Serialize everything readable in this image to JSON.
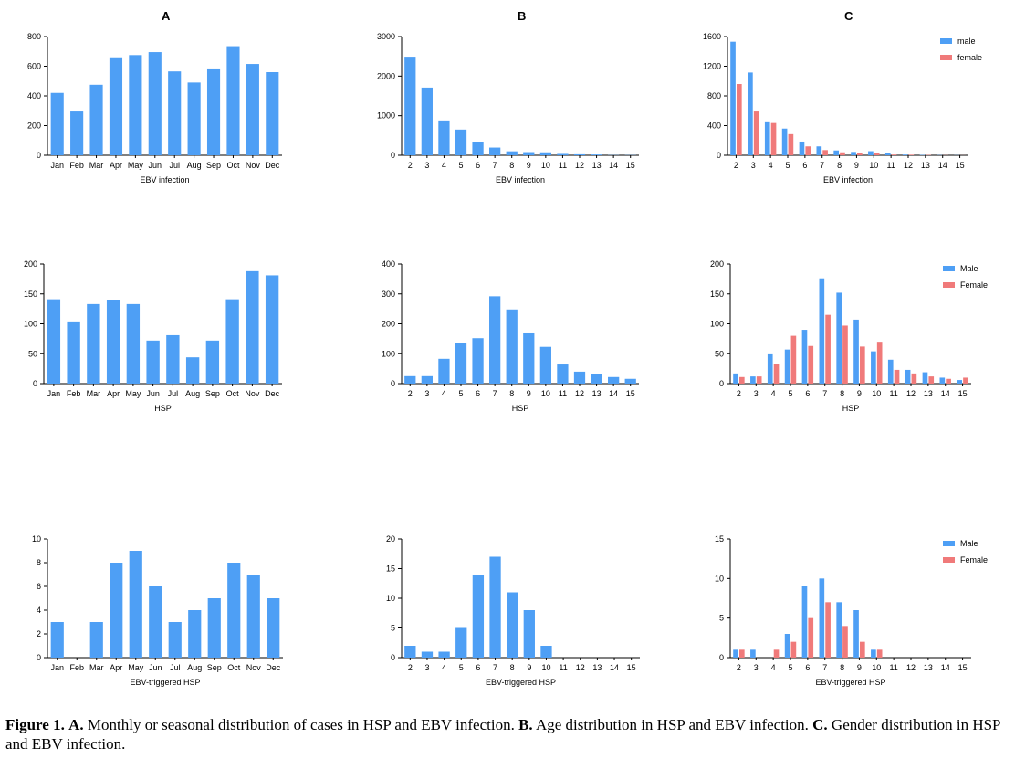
{
  "column_titles": [
    "A",
    "B",
    "C"
  ],
  "caption": {
    "fig_label": "Figure 1.",
    "a_label": "A.",
    "a_text": "Monthly or seasonal distribution of cases in HSP and EBV infection.",
    "b_label": "B.",
    "b_text": "Age distribution in HSP and EBV infection.",
    "c_label": "C.",
    "c_text": "Gender distribution in HSP and EBV infection."
  },
  "colors": {
    "blue": "#4e9ff5",
    "red": "#f07a7a"
  },
  "chart_data": [
    {
      "id": "A1",
      "type": "bar",
      "categories": [
        "Jan",
        "Feb",
        "Mar",
        "Apr",
        "May",
        "Jun",
        "Jul",
        "Aug",
        "Sep",
        "Oct",
        "Nov",
        "Dec"
      ],
      "series": [
        {
          "values": [
            420,
            295,
            475,
            660,
            675,
            695,
            565,
            490,
            585,
            735,
            615,
            560
          ]
        }
      ],
      "xlabel": "EBV infection",
      "ylabel": "",
      "ylim": [
        0,
        800
      ],
      "yticks": [
        0,
        200,
        400,
        600,
        800
      ],
      "legend": null
    },
    {
      "id": "B1",
      "type": "bar",
      "categories": [
        "2",
        "3",
        "4",
        "5",
        "6",
        "7",
        "8",
        "9",
        "10",
        "11",
        "12",
        "13",
        "14",
        "15"
      ],
      "series": [
        {
          "values": [
            2490,
            1710,
            880,
            650,
            330,
            195,
            100,
            80,
            75,
            35,
            25,
            20,
            5,
            5
          ]
        }
      ],
      "xlabel": "EBV infection",
      "ylabel": "",
      "ylim": [
        0,
        3000
      ],
      "yticks": [
        0,
        1000,
        2000,
        3000
      ],
      "legend": null
    },
    {
      "id": "C1",
      "type": "bar",
      "categories": [
        "2",
        "3",
        "4",
        "5",
        "6",
        "7",
        "8",
        "9",
        "10",
        "11",
        "12",
        "13",
        "14",
        "15"
      ],
      "series": [
        {
          "name": "male",
          "values": [
            1530,
            1115,
            445,
            360,
            185,
            120,
            65,
            45,
            55,
            25,
            10,
            5,
            3,
            2
          ]
        },
        {
          "name": "female",
          "values": [
            960,
            590,
            435,
            285,
            120,
            70,
            40,
            30,
            25,
            10,
            8,
            5,
            2,
            1
          ]
        }
      ],
      "xlabel": "EBV infection",
      "ylabel": "",
      "ylim": [
        0,
        1600
      ],
      "yticks": [
        0,
        400,
        800,
        1200,
        1600
      ],
      "legend": "top-right"
    },
    {
      "id": "A2",
      "type": "bar",
      "categories": [
        "Jan",
        "Feb",
        "Mar",
        "Apr",
        "May",
        "Jun",
        "Jul",
        "Aug",
        "Sep",
        "Oct",
        "Nov",
        "Dec"
      ],
      "series": [
        {
          "values": [
            141,
            104,
            133,
            139,
            133,
            72,
            81,
            44,
            72,
            141,
            188,
            181
          ]
        }
      ],
      "xlabel": "HSP",
      "ylabel": "",
      "ylim": [
        0,
        200
      ],
      "yticks": [
        0,
        50,
        100,
        150,
        200
      ],
      "legend": null
    },
    {
      "id": "B2",
      "type": "bar",
      "categories": [
        "2",
        "3",
        "4",
        "5",
        "6",
        "7",
        "8",
        "9",
        "10",
        "11",
        "12",
        "13",
        "14",
        "15"
      ],
      "series": [
        {
          "values": [
            25,
            25,
            83,
            135,
            152,
            292,
            248,
            168,
            123,
            64,
            40,
            32,
            22,
            16
          ]
        }
      ],
      "xlabel": "HSP",
      "ylabel": "",
      "ylim": [
        0,
        400
      ],
      "yticks": [
        0,
        100,
        200,
        300,
        400
      ],
      "legend": null
    },
    {
      "id": "C2",
      "type": "bar",
      "categories": [
        "2",
        "3",
        "4",
        "5",
        "6",
        "7",
        "8",
        "9",
        "10",
        "11",
        "12",
        "13",
        "14",
        "15"
      ],
      "series": [
        {
          "name": "Male",
          "values": [
            17,
            12,
            49,
            57,
            90,
            176,
            152,
            107,
            54,
            40,
            23,
            19,
            10,
            6
          ]
        },
        {
          "name": "Female",
          "values": [
            11,
            12,
            33,
            80,
            63,
            115,
            97,
            62,
            70,
            23,
            17,
            12,
            8,
            10
          ]
        }
      ],
      "xlabel": "HSP",
      "ylabel": "",
      "ylim": [
        0,
        200
      ],
      "yticks": [
        0,
        50,
        100,
        150,
        200
      ],
      "legend": "top-right"
    },
    {
      "id": "A3",
      "type": "bar",
      "categories": [
        "Jan",
        "Feb",
        "Mar",
        "Apr",
        "May",
        "Jun",
        "Jul",
        "Aug",
        "Sep",
        "Oct",
        "Nov",
        "Dec"
      ],
      "series": [
        {
          "values": [
            3,
            0,
            3,
            8,
            9,
            6,
            3,
            4,
            5,
            8,
            7,
            5
          ]
        }
      ],
      "xlabel": "EBV-triggered HSP",
      "ylabel": "",
      "ylim": [
        0,
        10
      ],
      "yticks": [
        0,
        2,
        4,
        6,
        8,
        10
      ],
      "legend": null
    },
    {
      "id": "B3",
      "type": "bar",
      "categories": [
        "2",
        "3",
        "4",
        "5",
        "6",
        "7",
        "8",
        "9",
        "10",
        "11",
        "12",
        "13",
        "14",
        "15"
      ],
      "series": [
        {
          "values": [
            2,
            1,
            1,
            5,
            14,
            17,
            11,
            8,
            2,
            0,
            0,
            0,
            0,
            0
          ]
        }
      ],
      "xlabel": "EBV-triggered HSP",
      "ylabel": "",
      "ylim": [
        0,
        20
      ],
      "yticks": [
        0,
        5,
        10,
        15,
        20
      ],
      "legend": null
    },
    {
      "id": "C3",
      "type": "bar",
      "categories": [
        "2",
        "3",
        "4",
        "5",
        "6",
        "7",
        "8",
        "9",
        "10",
        "11",
        "12",
        "13",
        "14",
        "15"
      ],
      "series": [
        {
          "name": "Male",
          "values": [
            1,
            1,
            0,
            3,
            9,
            10,
            7,
            6,
            1,
            0,
            0,
            0,
            0,
            0
          ]
        },
        {
          "name": "Female",
          "values": [
            1,
            0,
            1,
            2,
            5,
            7,
            4,
            2,
            1,
            0,
            0,
            0,
            0,
            0
          ]
        }
      ],
      "xlabel": "EBV-triggered HSP",
      "ylabel": "",
      "ylim": [
        0,
        15
      ],
      "yticks": [
        0,
        5,
        10,
        15
      ],
      "legend": "top-right"
    }
  ]
}
